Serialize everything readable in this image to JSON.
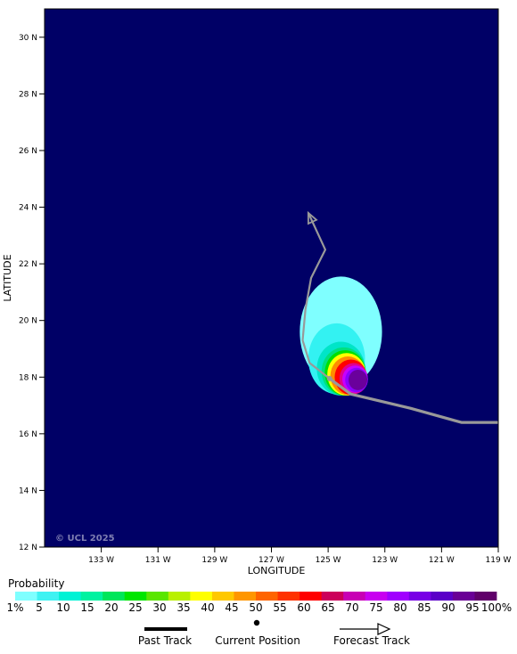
{
  "map": {
    "background_color": "#000066",
    "watermark": "© UCL 2025",
    "xlabel": "LONGITUDE",
    "ylabel": "LATITUDE",
    "lat_ticks": [
      {
        "value": 30,
        "label": "30 N"
      },
      {
        "value": 28,
        "label": "28 N"
      },
      {
        "value": 26,
        "label": "26 N"
      },
      {
        "value": 24,
        "label": "24 N"
      },
      {
        "value": 22,
        "label": "22 N"
      },
      {
        "value": 20,
        "label": "20 N"
      },
      {
        "value": 18,
        "label": "18 N"
      },
      {
        "value": 16,
        "label": "16 N"
      },
      {
        "value": 14,
        "label": "14 N"
      },
      {
        "value": 12,
        "label": "12 N"
      }
    ],
    "lon_ticks": [
      {
        "value": -133,
        "label": "133 W"
      },
      {
        "value": -131,
        "label": "131 W"
      },
      {
        "value": -129,
        "label": "129 W"
      },
      {
        "value": -127,
        "label": "127 W"
      },
      {
        "value": -125,
        "label": "125 W"
      },
      {
        "value": -123,
        "label": "123 W"
      },
      {
        "value": -121,
        "label": "121 W"
      },
      {
        "value": -119,
        "label": "119 W"
      }
    ],
    "lat_range": [
      12,
      31
    ],
    "lon_range": [
      -135,
      -119
    ]
  },
  "tracks": {
    "past_color": "#999999",
    "past": [
      {
        "lon": -119,
        "lat": 16.4
      },
      {
        "lon": -120.3,
        "lat": 16.4
      },
      {
        "lon": -122.1,
        "lat": 16.9
      },
      {
        "lon": -124.2,
        "lat": 17.4
      },
      {
        "lon": -124.95,
        "lat": 17.95
      }
    ],
    "current": {
      "lon": -124.95,
      "lat": 17.95
    },
    "forecast": [
      {
        "lon": -124.95,
        "lat": 17.95
      },
      {
        "lon": -125.65,
        "lat": 18.5
      },
      {
        "lon": -125.9,
        "lat": 19.3
      },
      {
        "lon": -125.8,
        "lat": 20.4
      },
      {
        "lon": -125.6,
        "lat": 21.5
      },
      {
        "lon": -125.1,
        "lat": 22.5
      },
      {
        "lon": -125.7,
        "lat": 23.8
      }
    ]
  },
  "probability_field": [
    {
      "level": "1%",
      "color": "#7fffff",
      "lon": -124.55,
      "lat": 19.6,
      "rx_deg": 1.45,
      "ry_deg": 1.95
    },
    {
      "level": "5",
      "color": "#33f2f2",
      "lon": -124.7,
      "lat": 18.65,
      "rx_deg": 1.0,
      "ry_deg": 1.25
    },
    {
      "level": "10",
      "color": "#00e5c8",
      "lon": -124.55,
      "lat": 18.3,
      "rx_deg": 0.85,
      "ry_deg": 0.95
    },
    {
      "level": "15",
      "color": "#00e07f",
      "lon": -124.45,
      "lat": 18.2,
      "rx_deg": 0.78,
      "ry_deg": 0.85
    },
    {
      "level": "25",
      "color": "#00e000",
      "lon": -124.4,
      "lat": 18.15,
      "rx_deg": 0.72,
      "ry_deg": 0.8
    },
    {
      "level": "35",
      "color": "#ffff00",
      "lon": -124.35,
      "lat": 18.1,
      "rx_deg": 0.68,
      "ry_deg": 0.75
    },
    {
      "level": "45",
      "color": "#ff8c00",
      "lon": -124.3,
      "lat": 18.05,
      "rx_deg": 0.62,
      "ry_deg": 0.68
    },
    {
      "level": "60",
      "color": "#ff0000",
      "lon": -124.2,
      "lat": 18.0,
      "rx_deg": 0.57,
      "ry_deg": 0.62
    },
    {
      "level": "70",
      "color": "#e0008c",
      "lon": -124.1,
      "lat": 17.95,
      "rx_deg": 0.5,
      "ry_deg": 0.55
    },
    {
      "level": "80",
      "color": "#c800ff",
      "lon": -124.05,
      "lat": 17.93,
      "rx_deg": 0.45,
      "ry_deg": 0.48
    },
    {
      "level": "85",
      "color": "#8c00ff",
      "lon": -124.0,
      "lat": 17.9,
      "rx_deg": 0.4,
      "ry_deg": 0.43
    },
    {
      "level": "95",
      "color": "#6a009c",
      "lon": -123.95,
      "lat": 17.9,
      "rx_deg": 0.33,
      "ry_deg": 0.36
    }
  ],
  "legend": {
    "title": "Probability",
    "swatches": [
      "#7fffff",
      "#3ff2f2",
      "#00f2d5",
      "#00f2a0",
      "#00e65a",
      "#00e600",
      "#5ae600",
      "#b9f000",
      "#ffff00",
      "#ffc800",
      "#ff9600",
      "#ff6400",
      "#ff3200",
      "#ff0000",
      "#cc005a",
      "#c800b4",
      "#c800f0",
      "#a000ff",
      "#7800e6",
      "#5a00c8",
      "#6a0096",
      "#60006a"
    ],
    "labels": [
      "1%",
      "5",
      "10",
      "15",
      "20",
      "25",
      "30",
      "35",
      "40",
      "45",
      "50",
      "55",
      "60",
      "65",
      "70",
      "75",
      "80",
      "85",
      "90",
      "95",
      "100%"
    ]
  },
  "key": {
    "past_track": "Past Track",
    "current_position": "Current Position",
    "forecast_track": "Forecast Track"
  }
}
